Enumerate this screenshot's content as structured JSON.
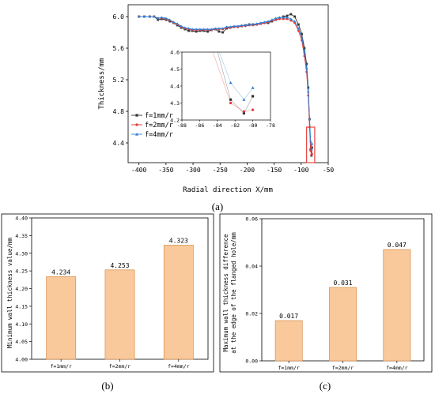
{
  "panels": {
    "a": {
      "label": "(a)"
    },
    "b": {
      "label": "(b)"
    },
    "c": {
      "label": "(c)"
    }
  },
  "chart_data": [
    {
      "id": "a",
      "type": "line",
      "xlabel": "Radial direction X/mm",
      "ylabel": "Thickness/mm",
      "xlim": [
        -420,
        -50
      ],
      "ylim": [
        4.15,
        6.15
      ],
      "xticks": [
        -400,
        -350,
        -300,
        -250,
        -200,
        -150,
        -100,
        -50
      ],
      "yticks": [
        4.4,
        4.8,
        5.2,
        5.6,
        6.0
      ],
      "legend_position": "lower-left",
      "series": [
        {
          "name": "f=1mm/r",
          "color": "#333333",
          "marker": "square",
          "x": [
            -400,
            -390,
            -380,
            -372,
            -365,
            -358,
            -350,
            -343,
            -336,
            -329,
            -322,
            -315,
            -308,
            -301,
            -294,
            -287,
            -280,
            -273,
            -266,
            -259,
            -252,
            -245,
            -238,
            -231,
            -224,
            -217,
            -210,
            -203,
            -196,
            -189,
            -182,
            -175,
            -168,
            -161,
            -154,
            -147,
            -140,
            -133,
            -126,
            -119,
            -112,
            -105,
            -99,
            -94,
            -90,
            -87,
            -84.5,
            -82.5,
            -81,
            -80
          ],
          "y": [
            6.0,
            6.0,
            6.0,
            6.0,
            5.96,
            5.97,
            5.96,
            5.94,
            5.92,
            5.89,
            5.86,
            5.84,
            5.82,
            5.82,
            5.81,
            5.82,
            5.82,
            5.81,
            5.83,
            5.84,
            5.81,
            5.8,
            5.85,
            5.86,
            5.87,
            5.87,
            5.88,
            5.89,
            5.9,
            5.9,
            5.9,
            5.91,
            5.92,
            5.92,
            5.94,
            5.96,
            5.98,
            6.0,
            6.01,
            6.03,
            6.0,
            5.9,
            5.78,
            5.6,
            5.4,
            5.1,
            4.7,
            4.32,
            4.24,
            4.34
          ]
        },
        {
          "name": "f=2mm/r",
          "color": "#e8352f",
          "marker": "circle",
          "x": [
            -400,
            -390,
            -380,
            -372,
            -365,
            -358,
            -350,
            -343,
            -336,
            -329,
            -322,
            -315,
            -308,
            -301,
            -294,
            -287,
            -280,
            -273,
            -266,
            -259,
            -252,
            -245,
            -238,
            -231,
            -224,
            -217,
            -210,
            -203,
            -196,
            -189,
            -182,
            -175,
            -168,
            -161,
            -154,
            -147,
            -140,
            -133,
            -126,
            -119,
            -112,
            -105,
            -99,
            -94,
            -90,
            -87,
            -84.5,
            -82.5,
            -81,
            -80
          ],
          "y": [
            6.0,
            6.0,
            6.0,
            6.0,
            5.98,
            5.98,
            5.97,
            5.95,
            5.92,
            5.9,
            5.87,
            5.85,
            5.84,
            5.83,
            5.83,
            5.83,
            5.83,
            5.83,
            5.83,
            5.84,
            5.84,
            5.84,
            5.86,
            5.86,
            5.87,
            5.87,
            5.88,
            5.88,
            5.89,
            5.89,
            5.9,
            5.91,
            5.92,
            5.93,
            5.95,
            5.96,
            5.97,
            5.97,
            5.97,
            5.95,
            5.92,
            5.82,
            5.7,
            5.5,
            5.3,
            5.0,
            4.6,
            4.3,
            4.25,
            4.26
          ]
        },
        {
          "name": "f=4mm/r",
          "color": "#2e7fd6",
          "marker": "triangle",
          "x": [
            -400,
            -390,
            -380,
            -372,
            -365,
            -358,
            -350,
            -343,
            -336,
            -329,
            -322,
            -315,
            -308,
            -301,
            -294,
            -287,
            -280,
            -273,
            -266,
            -259,
            -252,
            -245,
            -238,
            -231,
            -224,
            -217,
            -210,
            -203,
            -196,
            -189,
            -182,
            -175,
            -168,
            -161,
            -154,
            -147,
            -140,
            -133,
            -126,
            -119,
            -112,
            -105,
            -99,
            -94,
            -90,
            -87,
            -84.5,
            -82.5,
            -81,
            -80
          ],
          "y": [
            6.0,
            6.0,
            6.0,
            6.0,
            5.98,
            5.99,
            5.98,
            5.96,
            5.93,
            5.91,
            5.88,
            5.86,
            5.85,
            5.84,
            5.84,
            5.84,
            5.84,
            5.84,
            5.84,
            5.85,
            5.85,
            5.85,
            5.87,
            5.87,
            5.88,
            5.88,
            5.89,
            5.89,
            5.9,
            5.9,
            5.91,
            5.92,
            5.93,
            5.94,
            5.96,
            5.98,
            5.99,
            5.99,
            5.99,
            5.97,
            5.94,
            5.85,
            5.74,
            5.55,
            5.35,
            5.05,
            4.7,
            4.42,
            4.32,
            4.39
          ]
        }
      ],
      "inset": {
        "xlim": [
          -88,
          -78
        ],
        "ylim": [
          4.2,
          4.6
        ],
        "xticks": [
          -88,
          -86,
          -84,
          -82,
          -80,
          -78
        ],
        "yticks": [
          4.2,
          4.3,
          4.4,
          4.5,
          4.6
        ],
        "source_box": {
          "x": [
            -90,
            -75
          ],
          "y": [
            4.15,
            4.6
          ]
        }
      }
    },
    {
      "id": "b",
      "type": "bar",
      "categories": [
        "f=1mm/r",
        "f=2mm/r",
        "f=4mm/r"
      ],
      "values": [
        4.234,
        4.253,
        4.323
      ],
      "value_labels": [
        "4.234",
        "4.253",
        "4.323"
      ],
      "ylabel": "Minimum wall thickness value/mm",
      "ylim": [
        4.0,
        4.4
      ],
      "yticks": [
        "4.00",
        "4.05",
        "4.10",
        "4.15",
        "4.20",
        "4.25",
        "4.30",
        "4.35",
        "4.40"
      ],
      "bar_color": "#f9c89b",
      "bar_edge": "#d7904d"
    },
    {
      "id": "c",
      "type": "bar",
      "categories": [
        "f=1mm/r",
        "f=2mm/r",
        "f=4mm/r"
      ],
      "values": [
        0.017,
        0.031,
        0.047
      ],
      "value_labels": [
        "0.017",
        "0.031",
        "0.047"
      ],
      "ylabel_lines": [
        "Maximum wall thickness difference",
        "at the edge of the flanged hole/mm"
      ],
      "ylim": [
        0,
        0.06
      ],
      "yticks": [
        "0.00",
        "0.02",
        "0.04",
        "0.06"
      ],
      "bar_color": "#f9c89b",
      "bar_edge": "#d7904d"
    }
  ]
}
